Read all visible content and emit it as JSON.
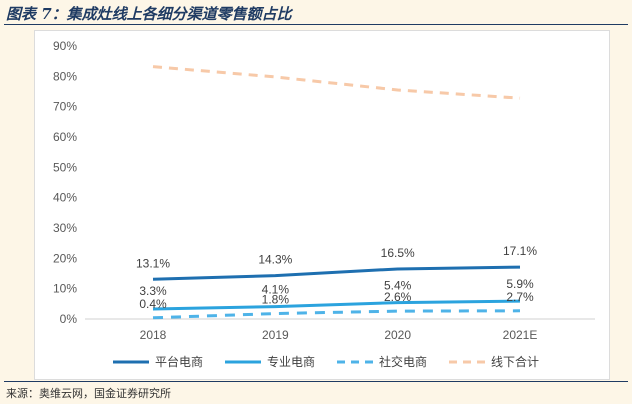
{
  "figure_title": "图表 7：集成灶线上各细分渠道零售额占比",
  "source_note": "来源：奥维云网，国金证券研究所",
  "chart_data": {
    "type": "line",
    "title": "",
    "xlabel": "",
    "ylabel": "",
    "categories": [
      "2018",
      "2019",
      "2020",
      "2021E"
    ],
    "ylim": [
      0,
      90
    ],
    "yticks": [
      "0%",
      "10%",
      "20%",
      "30%",
      "40%",
      "50%",
      "60%",
      "70%",
      "80%",
      "90%"
    ],
    "grid": false,
    "legend_position": "bottom",
    "series": [
      {
        "name": "平台电商",
        "values": [
          13.1,
          14.3,
          16.5,
          17.1
        ],
        "labels": [
          "13.1%",
          "14.3%",
          "16.5%",
          "17.1%"
        ],
        "color": "#1e6fb0",
        "style": "solid"
      },
      {
        "name": "专业电商",
        "values": [
          3.3,
          4.1,
          5.4,
          5.9
        ],
        "labels": [
          "3.3%",
          "4.1%",
          "5.4%",
          "5.9%"
        ],
        "color": "#2ba3de",
        "style": "solid"
      },
      {
        "name": "社交电商",
        "values": [
          0.4,
          1.8,
          2.6,
          2.7
        ],
        "labels": [
          "0.4%",
          "1.8%",
          "2.6%",
          "2.7%"
        ],
        "color": "#4eb3e8",
        "style": "dashed"
      },
      {
        "name": "线下合计",
        "values": [
          83.2,
          79.8,
          75.5,
          72.8
        ],
        "labels": [],
        "color": "#f7c9a8",
        "style": "dashed"
      }
    ]
  }
}
